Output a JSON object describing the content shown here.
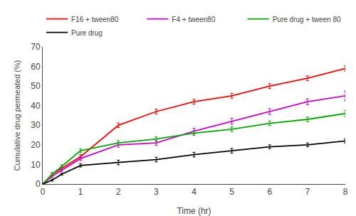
{
  "chart_data": {
    "type": "line",
    "x": [
      0,
      0.25,
      0.5,
      1,
      2,
      3,
      4,
      5,
      6,
      7,
      8
    ],
    "series": [
      {
        "name": "F16 + tween80",
        "color": "#ff0000",
        "values": [
          0,
          5,
          8,
          14,
          30,
          37,
          42,
          45,
          50,
          54,
          59
        ],
        "error": [
          0,
          0.8,
          0.8,
          1.0,
          1.2,
          1.2,
          1.2,
          1.2,
          1.2,
          1.2,
          1.3
        ]
      },
      {
        "name": "F4 + tween80",
        "color": "#cc00cc",
        "values": [
          0,
          4,
          7,
          13,
          20,
          21,
          27,
          32,
          37,
          42,
          45
        ],
        "error": [
          0,
          0.6,
          0.7,
          1.0,
          1.2,
          1.2,
          1.5,
          1.5,
          1.5,
          1.5,
          2.5
        ]
      },
      {
        "name": "Pure drug + tween 80",
        "color": "#00aa00",
        "values": [
          0,
          5,
          9,
          17,
          21,
          23,
          26,
          28,
          31,
          33,
          36
        ],
        "error": [
          0,
          0.6,
          0.8,
          1.0,
          1.2,
          1.2,
          1.2,
          1.2,
          1.2,
          1.2,
          1.5
        ]
      },
      {
        "name": "Pure drug",
        "color": "#000000",
        "values": [
          0,
          2,
          5,
          9.5,
          11,
          12.5,
          15,
          17,
          19,
          20,
          22
        ],
        "error": [
          0,
          0.5,
          0.5,
          0.8,
          1.2,
          1.2,
          1.2,
          1.2,
          1.0,
          1.0,
          1.0
        ]
      }
    ],
    "xlabel": "Time (hr)",
    "ylabel": "Cumulative drug permeated (%)",
    "xlim": [
      0,
      8
    ],
    "ylim": [
      0,
      70
    ],
    "xticks": [
      0,
      1,
      2,
      3,
      4,
      5,
      6,
      7,
      8
    ],
    "yticks": [
      0,
      10,
      20,
      30,
      40,
      50,
      60,
      70
    ],
    "grid": false,
    "legend": "top"
  }
}
